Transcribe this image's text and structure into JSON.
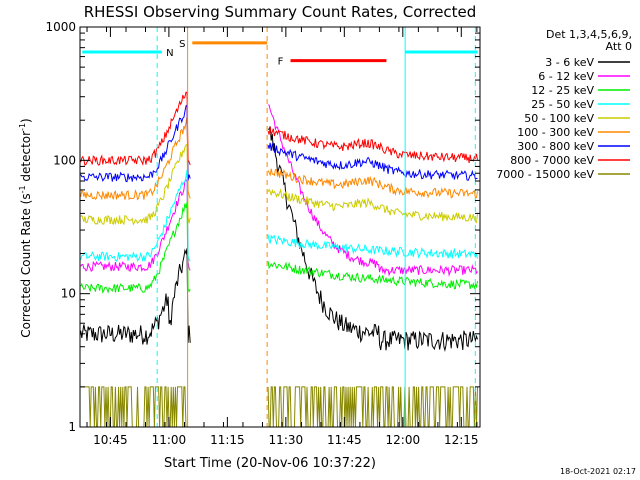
{
  "chart_data": {
    "type": "line",
    "title": "RHESSI Observing Summary Count Rates, Corrected",
    "xlabel": "Start Time (20-Nov-06 10:37:22)",
    "ylabel": "Corrected Count Rate (s",
    "ylabel_sup1": "-1",
    "ylabel_mid": " detector",
    "ylabel_sup2": "-1",
    "ylabel_end": ")",
    "y_scale": "log",
    "ylim": [
      1,
      1000
    ],
    "xlim_minutes": [
      10.62,
      12.33
    ],
    "y_ticks": [
      {
        "v": 1,
        "label": "1"
      },
      {
        "v": 10,
        "label": "10"
      },
      {
        "v": 100,
        "label": "100"
      },
      {
        "v": 1000,
        "label": "1000"
      }
    ],
    "x_ticks": [
      {
        "t": 10.75,
        "label": "10:45"
      },
      {
        "t": 11.0,
        "label": "11:00"
      },
      {
        "t": 11.25,
        "label": "11:15"
      },
      {
        "t": 11.5,
        "label": "11:30"
      },
      {
        "t": 11.75,
        "label": "11:45"
      },
      {
        "t": 12.0,
        "label": "12:00"
      },
      {
        "t": 12.25,
        "label": "12:15"
      }
    ],
    "legend": {
      "header1": "Det 1,3,4,5,6,9,",
      "header2": "Att 0",
      "placement": "right"
    },
    "series": [
      {
        "name": "3 - 6 keV",
        "color": "#000000",
        "base": 5,
        "profile": "lo"
      },
      {
        "name": "6 - 12 keV",
        "color": "#ff00ff",
        "base": 16,
        "profile": "mag"
      },
      {
        "name": "12 - 25 keV",
        "color": "#00ee00",
        "base": 11,
        "profile": "green"
      },
      {
        "name": "25 - 50 keV",
        "color": "#00ffff",
        "base": 19,
        "profile": "cyan"
      },
      {
        "name": "50 - 100 keV",
        "color": "#cccc00",
        "base": 36,
        "profile": "yellow"
      },
      {
        "name": "100 - 300 keV",
        "color": "#ff8800",
        "base": 55,
        "profile": "orange"
      },
      {
        "name": "300 - 800 keV",
        "color": "#0000ff",
        "base": 75,
        "profile": "blue"
      },
      {
        "name": "800 - 7000 keV",
        "color": "#ff0000",
        "base": 100,
        "profile": "red"
      },
      {
        "name": "7000 - 15000 keV",
        "color": "#888800",
        "base": 2,
        "profile": "olive"
      }
    ],
    "data_gaps_minutes": [
      [
        11.08,
        11.42
      ]
    ],
    "bars": [
      {
        "label": "N",
        "color": "#00ffff",
        "t0": 10.63,
        "t1": 10.97,
        "level": 650
      },
      {
        "label": "S",
        "color": "#ff8800",
        "t0": 11.1,
        "t1": 11.42,
        "level": 760
      },
      {
        "label": "F",
        "color": "#ff0000",
        "t0": 11.52,
        "t1": 11.93,
        "level": 560
      },
      {
        "label": "",
        "color": "#00ffff",
        "t0": 12.01,
        "t1": 12.32,
        "level": 650
      }
    ],
    "vlines": [
      {
        "t": 10.95,
        "color": "#00ffff",
        "dashed": true
      },
      {
        "t": 11.08,
        "color": "#ff8800",
        "dashed": false
      },
      {
        "t": 11.42,
        "color": "#ff8800",
        "dashed": true
      },
      {
        "t": 12.01,
        "color": "#00ffff",
        "dashed": false
      },
      {
        "t": 12.31,
        "color": "#00ffff",
        "dashed": true
      }
    ],
    "footer": "18-Oct-2021 02:17"
  }
}
